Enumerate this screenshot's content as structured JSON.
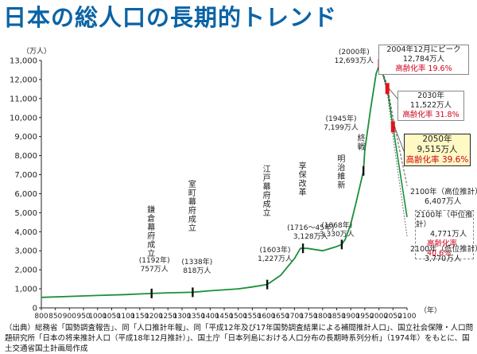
{
  "title": "日本の総人口の長期的トレンド",
  "source_note": "（出典）総務省「国勢調査報告」、同「人口推計年報」、同「平成12年及び17年国勢調査結果による補間推計人口」、国立社会保障・人口問題研究所「日本の将来推計人口（平成18年12月推計）」、国土庁「日本列島における人口分布の長期時系列分析」（1974年）をもとに、国土交通省国土計画局作成",
  "chart_data": {
    "type": "line",
    "title": "",
    "ylabel": "（万人）",
    "xlabel": "（年）",
    "xlim": [
      800,
      2100
    ],
    "ylim": [
      0,
      13000
    ],
    "xticks": [
      800,
      850,
      900,
      950,
      1000,
      1050,
      1100,
      1150,
      1200,
      1250,
      1300,
      1350,
      1400,
      1450,
      1500,
      1550,
      1600,
      1650,
      1700,
      1750,
      1800,
      1850,
      1900,
      1950,
      2000,
      2050,
      2100
    ],
    "yticks": [
      0,
      1000,
      2000,
      3000,
      4000,
      5000,
      6000,
      7000,
      8000,
      9000,
      10000,
      11000,
      12000,
      13000
    ],
    "grid": false,
    "historical": {
      "x": [
        800,
        900,
        1000,
        1100,
        1150,
        1192,
        1250,
        1338,
        1400,
        1500,
        1550,
        1603,
        1650,
        1700,
        1721,
        1745,
        1800,
        1846,
        1868,
        1880,
        1900,
        1920,
        1945,
        1950,
        1970,
        1990,
        2000,
        2004
      ],
      "y": [
        550,
        600,
        650,
        700,
        730,
        757,
        790,
        818,
        900,
        1000,
        1100,
        1227,
        1700,
        2600,
        3128,
        3128,
        3000,
        3200,
        3330,
        3600,
        4400,
        5600,
        7199,
        8300,
        10400,
        12300,
        12693,
        12784
      ]
    },
    "projections": [
      {
        "name": "中位推計",
        "x": [
          2004,
          2030,
          2050,
          2100
        ],
        "y": [
          12784,
          11522,
          9515,
          4771
        ]
      },
      {
        "name": "高位推計",
        "x": [
          2004,
          2030,
          2050,
          2100
        ],
        "y": [
          12784,
          11700,
          10000,
          6407
        ]
      },
      {
        "name": "低位推計",
        "x": [
          2004,
          2030,
          2050,
          2100
        ],
        "y": [
          12784,
          11300,
          9000,
          3770
        ]
      }
    ],
    "point_annotations": [
      {
        "year_label": "(1192年)",
        "value_label": "757万人",
        "vertical": "鎌倉幕府成立",
        "x": 1192,
        "y": 757
      },
      {
        "year_label": "(1338年)",
        "value_label": "818万人",
        "vertical": "室町幕府成立",
        "x": 1338,
        "y": 818
      },
      {
        "year_label": "(1603年)",
        "value_label": "1,227万人",
        "vertical": "江戸幕府成立",
        "x": 1603,
        "y": 1227
      },
      {
        "year_label": "(1716～45年)",
        "value_label": "3,128万人",
        "vertical": "享保改革",
        "x": 1730,
        "y": 3128
      },
      {
        "year_label": "(1868年)",
        "value_label": "3,330万人",
        "vertical": "明治維新",
        "x": 1868,
        "y": 3330
      },
      {
        "year_label": "(1945年)",
        "value_label": "7,199万人",
        "vertical": "終戦",
        "x": 1945,
        "y": 7199
      },
      {
        "year_label": "(2000年)",
        "value_label": "12,693万人",
        "vertical": "",
        "x": 2000,
        "y": 12693
      }
    ],
    "callouts": {
      "peak": {
        "line1": "2004年12月にピーク",
        "line2": "12,784万人",
        "line3": "高齢化率 19.6%"
      },
      "y2030": {
        "line1": "2030年",
        "line2": "11,522万人",
        "line3": "高齢化率 31.8%"
      },
      "y2050": {
        "line1": "2050年",
        "line2": "9,515万人",
        "line3": "高齢化率 39.6%"
      },
      "high": {
        "line1": "2100年（高位推計）",
        "line2": "6,407万人"
      },
      "mid": {
        "line1": "2100年（中位推計）",
        "line2": "4,771万人",
        "line3": "高齢化率 40.6%"
      },
      "low": {
        "line1": "2100年（低位推計）",
        "line2": "3,770万人"
      }
    },
    "colors": {
      "line": "#1a8f3a",
      "marker": "#e3141b",
      "title": "#0b63a5",
      "highlight": "#fff9c4"
    }
  }
}
